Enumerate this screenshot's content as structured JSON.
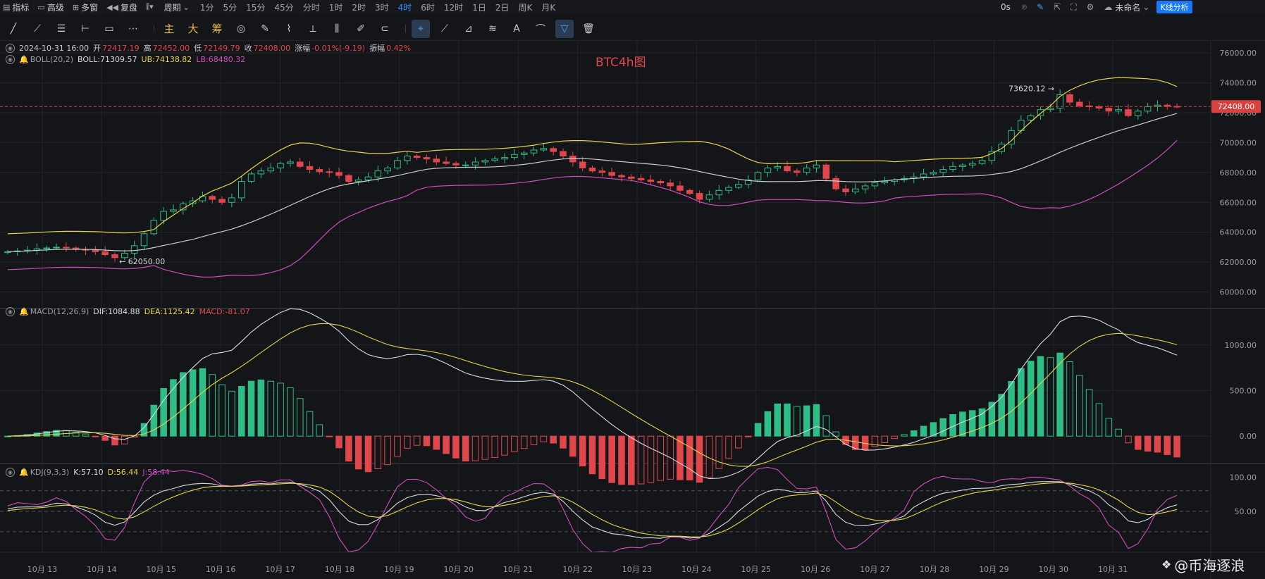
{
  "toolbar1": {
    "items": [
      {
        "icon": "indicator-icon",
        "label": "指标"
      },
      {
        "icon": "advanced-icon",
        "label": "高级"
      },
      {
        "icon": "multi-window-icon",
        "label": "多窗"
      },
      {
        "icon": "replay-icon",
        "label": "复盘"
      },
      {
        "icon": "chart-type-icon",
        "label": ""
      },
      {
        "icon": "",
        "label": "周期"
      }
    ],
    "periods": [
      "1分",
      "5分",
      "15分",
      "45分",
      "分时",
      "1时",
      "2时",
      "3时",
      "4时",
      "6时",
      "12时",
      "1日",
      "2日",
      "周K",
      "月K"
    ],
    "active_period": "4时",
    "right": {
      "delay": "0s",
      "template": "未命名",
      "analysis": "K线分析"
    }
  },
  "toolbar2": {
    "tools": [
      "line-tool-icon",
      "ray-tool-icon",
      "parallel-tool-icon",
      "horizontal-line-icon",
      "rectangle-icon",
      "more-icon"
    ],
    "cn_tools": [
      "主",
      "大",
      "筹"
    ],
    "tools2": [
      "clock-tool-icon",
      "pencil-tool-icon",
      "brush-tool-icon",
      "ruler-tool-icon",
      "candles-tool-icon",
      "note-tool-icon",
      "magnet-tool-icon",
      "filter-tool-icon",
      "trash-tool-icon"
    ]
  },
  "legend": {
    "main": {
      "time": "2024-10-31 16:00",
      "open_label": "开",
      "open": "72417.19",
      "high_label": "高",
      "high": "72452.00",
      "low_label": "低",
      "low": "72149.79",
      "close_label": "收",
      "close": "72408.00",
      "chg_label": "涨幅",
      "chg": "-0.01%(-9.19)",
      "amp_label": "振幅",
      "amp": "0.42%"
    },
    "boll": {
      "name": "BOLL(20,2)",
      "boll": "BOLL:71309.57",
      "ub": "UB:74138.82",
      "lb": "LB:68480.32"
    },
    "macd": {
      "name": "MACD(12,26,9)",
      "dif": "DIF:1084.88",
      "dea": "DEA:1125.42",
      "macd": "MACD:-81.07"
    },
    "kdj": {
      "name": "KDJ(9,3,3)",
      "k": "K:57.10",
      "d": "D:56.44",
      "j": "J:58.44"
    }
  },
  "title": "BTC4h图",
  "watermark": "@币海逐浪",
  "colors": {
    "up": "#2ebd85",
    "down": "#e0474c",
    "boll_mid": "#c9cbd0",
    "ub": "#e8d24a",
    "lb": "#d04cc0",
    "bg": "#141518",
    "grid": "#22242a",
    "price_tag": "#d8413f",
    "active": "#2f8cff"
  },
  "chart_data": {
    "type": "candlestick",
    "interval": "4h",
    "price_axis": {
      "ticks": [
        60000,
        62000,
        64000,
        66000,
        68000,
        70000,
        72000,
        74000,
        76000
      ],
      "labels": [
        "60000.00",
        "62000.00",
        "64000.00",
        "66000.00",
        "68000.00",
        "70000.00",
        "72000.00",
        "74000.00",
        "76000.00"
      ]
    },
    "last_price": "72408.00",
    "last_price_value": 72408,
    "high_marker": {
      "label": "73620.12",
      "value": 73620.12
    },
    "low_marker": {
      "label": "62050.00",
      "value": 62050
    },
    "dates": [
      "10月 13",
      "10月 14",
      "10月 15",
      "10月 16",
      "10月 17",
      "10月 18",
      "10月 19",
      "10月 20",
      "10月 21",
      "10月 22",
      "10月 23",
      "10月 24",
      "10月 25",
      "10月 26",
      "10月 27",
      "10月 28",
      "10月 29",
      "10月 30",
      "10月 31"
    ],
    "closes": [
      62700,
      62750,
      62800,
      62900,
      62950,
      63000,
      62950,
      62850,
      62800,
      62700,
      62500,
      62300,
      62600,
      63100,
      63900,
      64800,
      65400,
      65500,
      65900,
      66100,
      66400,
      66200,
      66000,
      66300,
      67400,
      67900,
      68100,
      68300,
      68600,
      68700,
      68400,
      68200,
      68050,
      68000,
      67800,
      67400,
      67500,
      67700,
      68100,
      68300,
      68800,
      69100,
      69000,
      68900,
      68700,
      68600,
      68500,
      68500,
      68700,
      68800,
      68900,
      69000,
      69200,
      69300,
      69500,
      69600,
      69400,
      69100,
      68700,
      68300,
      68100,
      68000,
      67800,
      67700,
      67600,
      67500,
      67400,
      67300,
      67100,
      66800,
      66600,
      66200,
      66500,
      66800,
      67000,
      67200,
      67500,
      68000,
      68300,
      68400,
      68100,
      68000,
      68300,
      68500,
      67600,
      66900,
      66700,
      66900,
      67100,
      67300,
      67400,
      67500,
      67600,
      67700,
      67900,
      68000,
      68200,
      68400,
      68500,
      68600,
      68800,
      69400,
      69900,
      70800,
      71500,
      71800,
      72200,
      72300,
      73200,
      72700,
      72450,
      72400,
      72300,
      72100,
      72200,
      71800,
      72100,
      72400,
      72500,
      72420,
      72408
    ],
    "macd": {
      "axis_ticks": [
        1000,
        500,
        0
      ],
      "axis_labels": [
        "1000.00",
        "500.00",
        "0.00"
      ]
    },
    "kdj": {
      "axis_ticks": [
        100,
        50
      ],
      "axis_labels": [
        "100.00",
        "50.00"
      ]
    }
  }
}
